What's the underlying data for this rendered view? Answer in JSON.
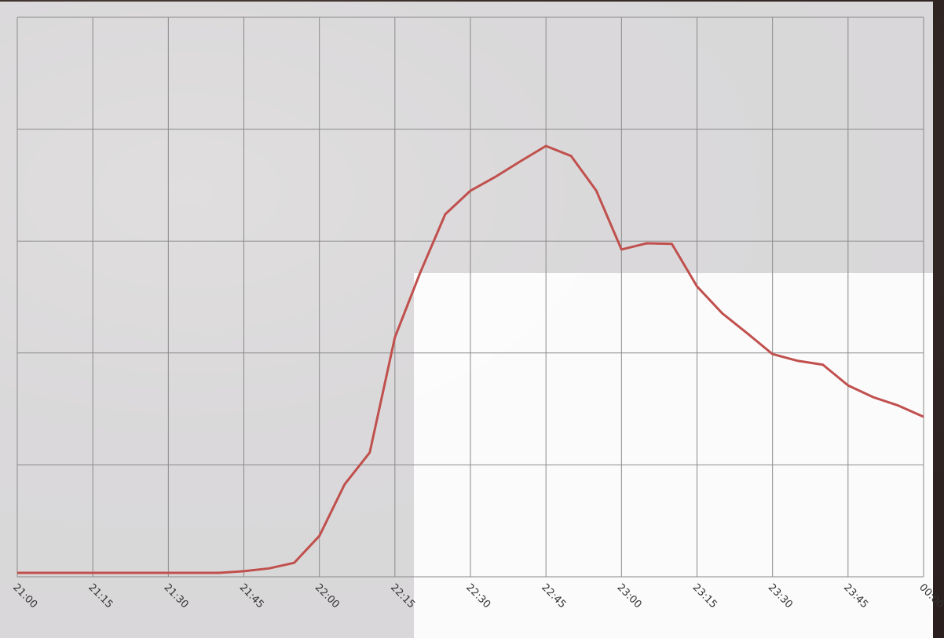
{
  "chart_data": {
    "type": "line",
    "categories": [
      "21:00",
      null,
      null,
      "21:15",
      null,
      null,
      "21:30",
      null,
      null,
      "21:45",
      null,
      null,
      "22:00",
      null,
      null,
      "22:15",
      null,
      null,
      "22:30",
      null,
      null,
      "22:45",
      null,
      null,
      "23:00",
      null,
      null,
      "23:15",
      null,
      null,
      "23:30",
      null,
      null,
      "23:45",
      null,
      null,
      "00:00"
    ],
    "series": [
      {
        "color": "#c0504d",
        "values": [
          0.7,
          0.7,
          0.7,
          0.7,
          0.7,
          0.7,
          0.7,
          0.7,
          0.7,
          1.0,
          1.5,
          2.5,
          7.3,
          16.5,
          22.2,
          42.8,
          54.3,
          64.8,
          69.0,
          71.5,
          74.3,
          77.0,
          75.2,
          69.0,
          58.5,
          59.6,
          59.5,
          51.9,
          47.1,
          43.5,
          39.8,
          38.6,
          37.9,
          34.2,
          32.1,
          30.6,
          28.6
        ]
      }
    ],
    "ylim": [
      0,
      100
    ],
    "yticks": [
      0,
      20,
      40,
      60,
      80,
      100
    ],
    "grid": true
  }
}
